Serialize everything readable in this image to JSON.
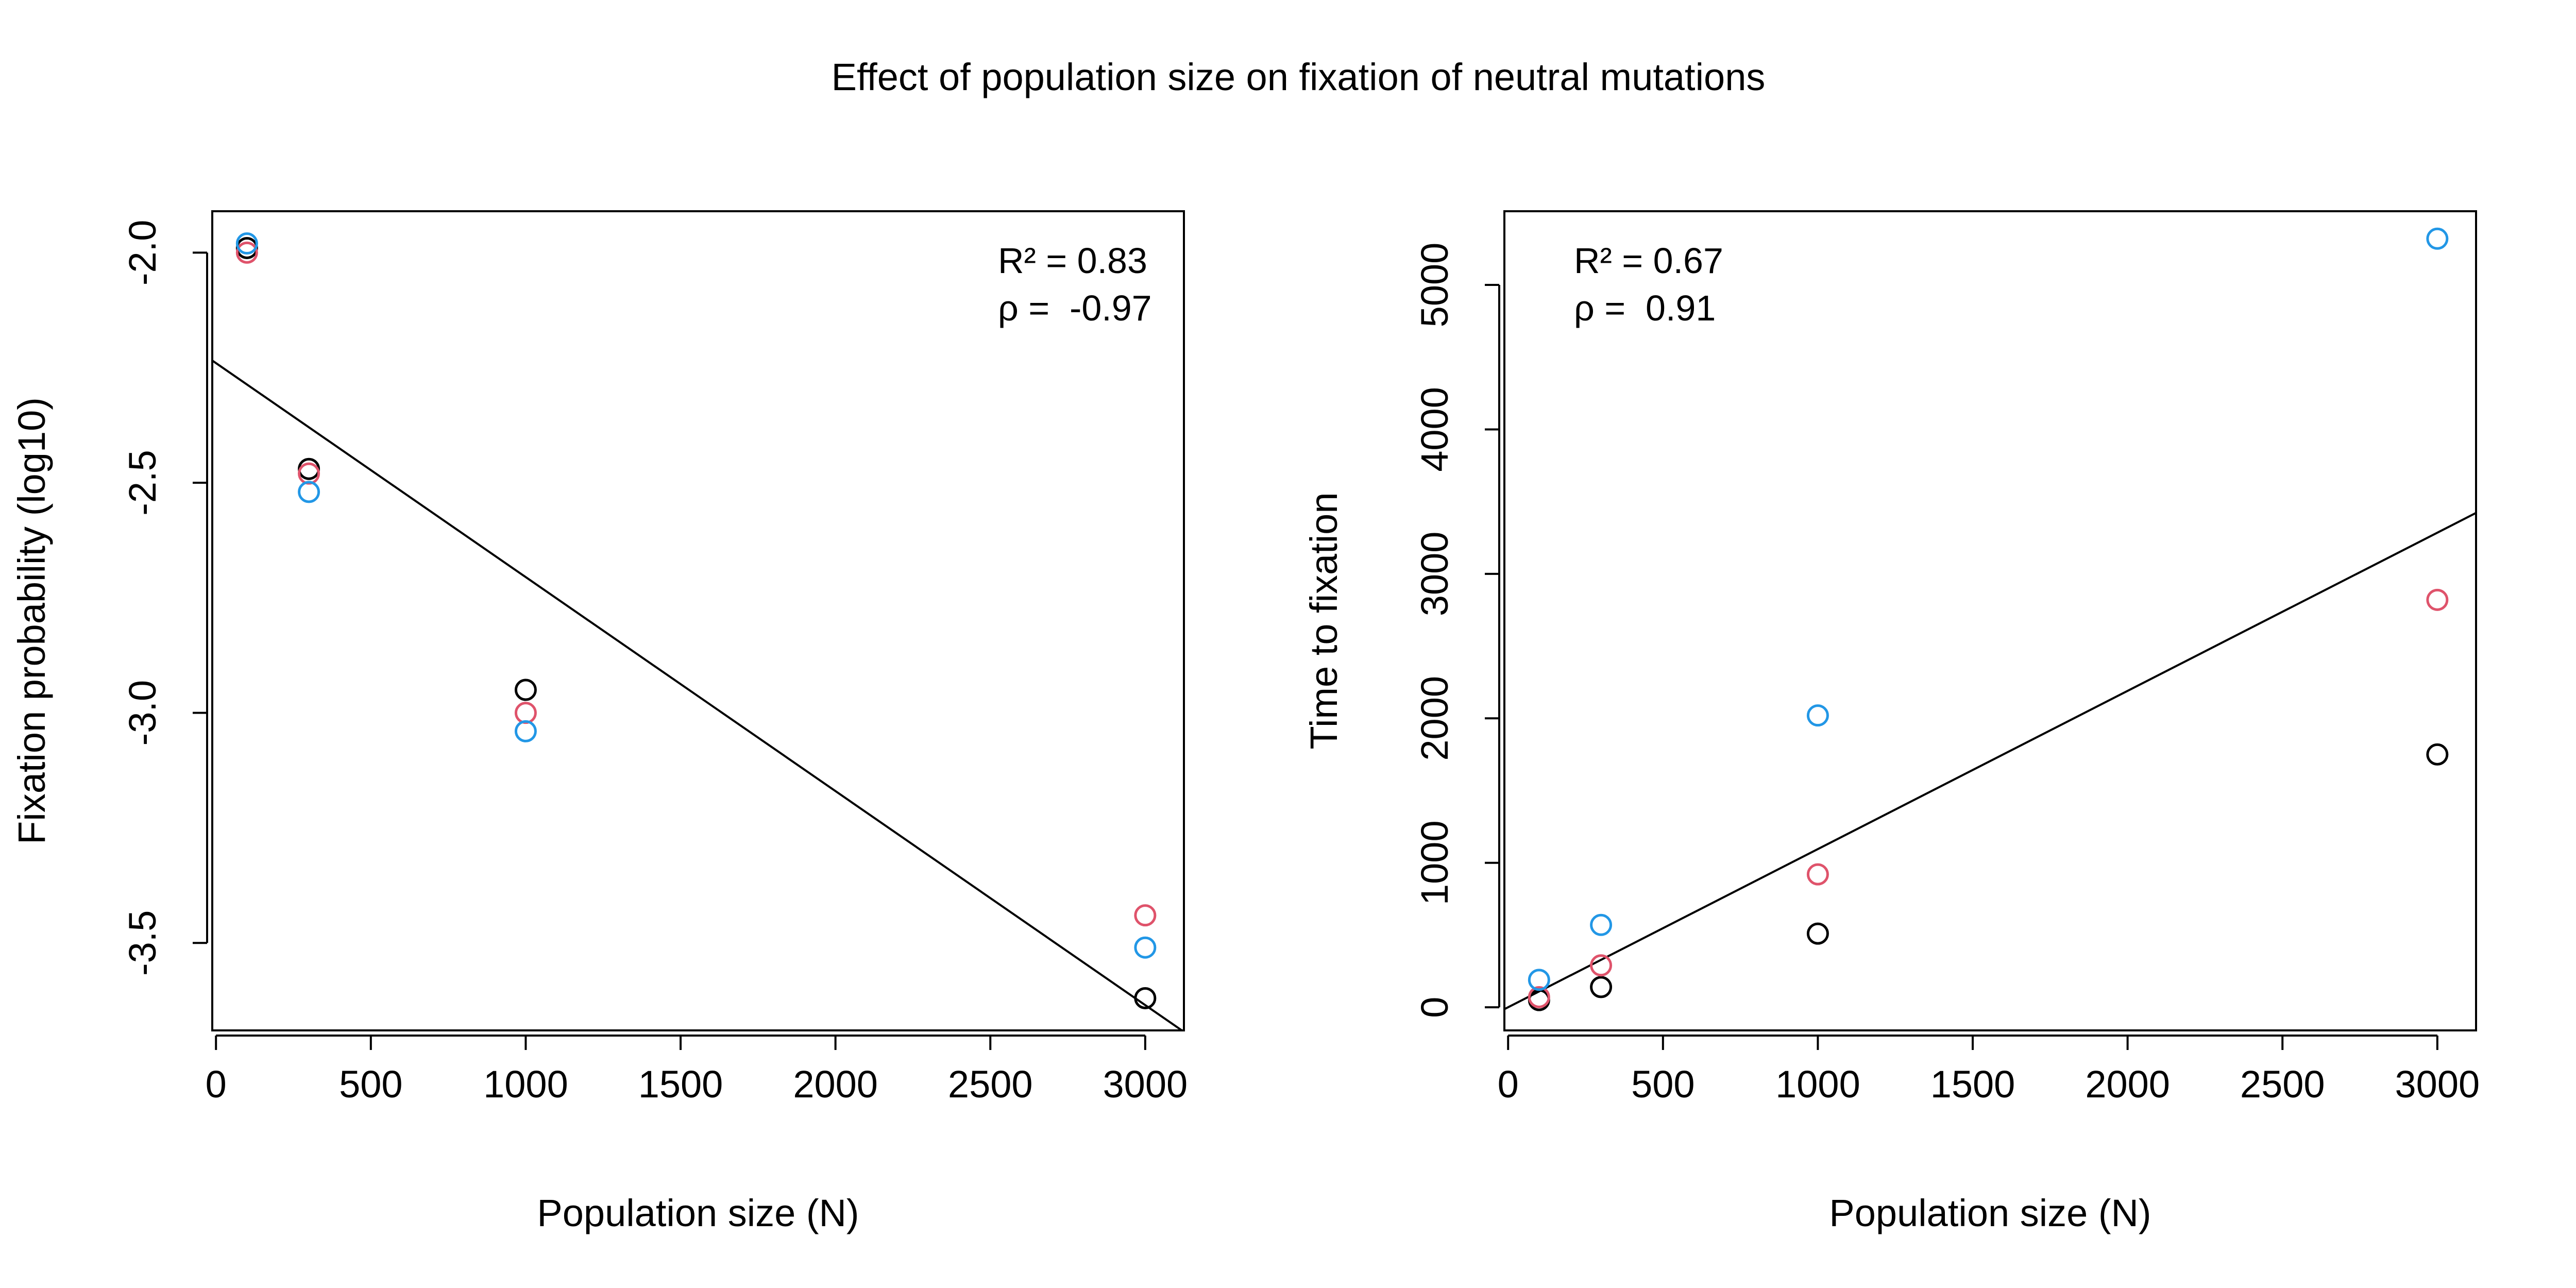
{
  "title": "Effect of population size on fixation of neutral mutations",
  "colors": {
    "series1": "#000000",
    "series2": "#DF536B",
    "series3": "#2297E6",
    "axis": "#000000"
  },
  "chart_data": [
    {
      "type": "scatter",
      "xlabel": "Population size (N)",
      "ylabel": "Fixation probability (log10)",
      "xlim": [
        -12,
        3125
      ],
      "ylim": [
        -3.69,
        -1.91
      ],
      "xticks": [
        0,
        500,
        1000,
        1500,
        2000,
        2500,
        3000
      ],
      "xtick_labels": [
        "0",
        "500",
        "1000",
        "1500",
        "2000",
        "2500",
        "3000"
      ],
      "yticks": [
        -3.5,
        -3.0,
        -2.5,
        -2.0
      ],
      "ytick_labels": [
        "-3.5",
        "-3.0",
        "-2.5",
        "-2.0"
      ],
      "x": [
        100,
        300,
        1000,
        3000
      ],
      "series": [
        {
          "color": "#000000",
          "values": [
            -1.99,
            -2.47,
            -2.95,
            -3.62
          ]
        },
        {
          "color": "#DF536B",
          "values": [
            -2.0,
            -2.48,
            -3.0,
            -3.44
          ]
        },
        {
          "color": "#2297E6",
          "values": [
            -1.98,
            -2.52,
            -3.04,
            -3.51
          ]
        }
      ],
      "fit_line": {
        "intercept": -2.24,
        "slope": -0.000465
      },
      "annotation": {
        "r2": "R² = 0.83",
        "rho": "ρ =  -0.97",
        "position": "top-right"
      }
    },
    {
      "type": "scatter",
      "xlabel": "Population size (N)",
      "ylabel": "Time to fixation",
      "xlim": [
        -12,
        3125
      ],
      "ylim": [
        -160,
        5510
      ],
      "xticks": [
        0,
        500,
        1000,
        1500,
        2000,
        2500,
        3000
      ],
      "xtick_labels": [
        "0",
        "500",
        "1000",
        "1500",
        "2000",
        "2500",
        "3000"
      ],
      "yticks": [
        0,
        1000,
        2000,
        3000,
        4000,
        5000
      ],
      "ytick_labels": [
        "0",
        "1000",
        "2000",
        "3000",
        "4000",
        "5000"
      ],
      "x": [
        100,
        300,
        1000,
        3000
      ],
      "series": [
        {
          "color": "#000000",
          "values": [
            50,
            140,
            510,
            1750
          ]
        },
        {
          "color": "#DF536B",
          "values": [
            70,
            290,
            920,
            2820
          ]
        },
        {
          "color": "#2297E6",
          "values": [
            190,
            570,
            2020,
            5320
          ]
        }
      ],
      "fit_line": {
        "intercept": 0,
        "slope": 1.095
      },
      "annotation": {
        "r2": "R² = 0.67",
        "rho": "ρ =  0.91",
        "position": "top-left"
      }
    }
  ]
}
